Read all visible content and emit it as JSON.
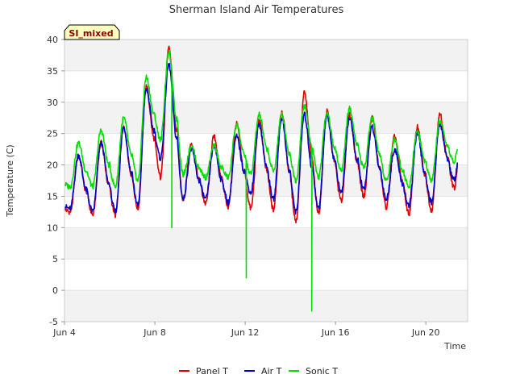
{
  "chart_data": {
    "type": "line",
    "title": "Sherman Island Air Temperatures",
    "badge": "SI_mixed",
    "xlabel": "Time",
    "ylabel": "Temperature (C)",
    "xlim": [
      4.0,
      21.85
    ],
    "ylim": [
      -5,
      40
    ],
    "grid": "horizontal bands",
    "legend_position": "bottom-center",
    "x_ticks": [
      {
        "x": 4,
        "label": "Jun 4"
      },
      {
        "x": 8,
        "label": "Jun 8"
      },
      {
        "x": 12,
        "label": "Jun 12"
      },
      {
        "x": 16,
        "label": "Jun 16"
      },
      {
        "x": 20,
        "label": "Jun 20"
      }
    ],
    "y_ticks": [
      -5,
      0,
      5,
      10,
      15,
      20,
      25,
      30,
      35,
      40
    ],
    "daily_extremes": {
      "days": [
        4,
        5,
        6,
        7,
        8,
        9,
        10,
        11,
        12,
        13,
        14,
        15,
        16,
        17,
        18,
        19,
        20,
        21
      ],
      "note_units": "day-of-June; temperatures in C"
    },
    "series": [
      {
        "name": "Panel T",
        "color": "#e00000",
        "peaks": [
          21.5,
          23.5,
          26.0,
          32.5,
          38.5,
          23.5,
          24.5,
          26.5,
          27.0,
          28.5,
          31.5,
          28.5,
          28.0,
          27.5,
          24.5,
          26.0,
          28.0
        ],
        "troughs": [
          12.5,
          12.0,
          12.0,
          13.0,
          18.0,
          14.5,
          13.8,
          13.3,
          13.0,
          12.8,
          11.0,
          12.3,
          14.2,
          15.0,
          13.2,
          12.2,
          12.8,
          16.2
        ]
      },
      {
        "name": "Air T",
        "color": "#0000cc",
        "peaks": [
          21.5,
          23.5,
          26.0,
          32.0,
          36.0,
          22.5,
          23.0,
          24.5,
          26.5,
          27.5,
          28.0,
          28.0,
          27.5,
          26.0,
          22.5,
          25.0,
          26.5
        ],
        "troughs": [
          13.0,
          12.5,
          12.5,
          13.5,
          21.0,
          14.5,
          14.5,
          14.0,
          15.5,
          14.5,
          12.5,
          13.0,
          15.5,
          16.0,
          14.5,
          13.5,
          14.0,
          17.5
        ]
      },
      {
        "name": "Sonic T",
        "color": "#00dd00",
        "peaks": [
          23.5,
          25.5,
          27.5,
          34.0,
          38.0,
          23.0,
          23.0,
          26.5,
          28.0,
          28.0,
          29.5,
          28.5,
          29.0,
          27.5,
          24.0,
          25.5,
          27.0
        ],
        "troughs": [
          16.5,
          16.5,
          16.5,
          17.5,
          24.0,
          18.5,
          18.0,
          18.0,
          18.5,
          19.0,
          17.5,
          18.0,
          19.0,
          19.5,
          17.5,
          16.5,
          17.5,
          20.5
        ],
        "spikes": [
          {
            "x": 8.75,
            "y": 10
          },
          {
            "x": 12.05,
            "y": 2
          },
          {
            "x": 14.95,
            "y": -3.3
          }
        ]
      }
    ]
  }
}
